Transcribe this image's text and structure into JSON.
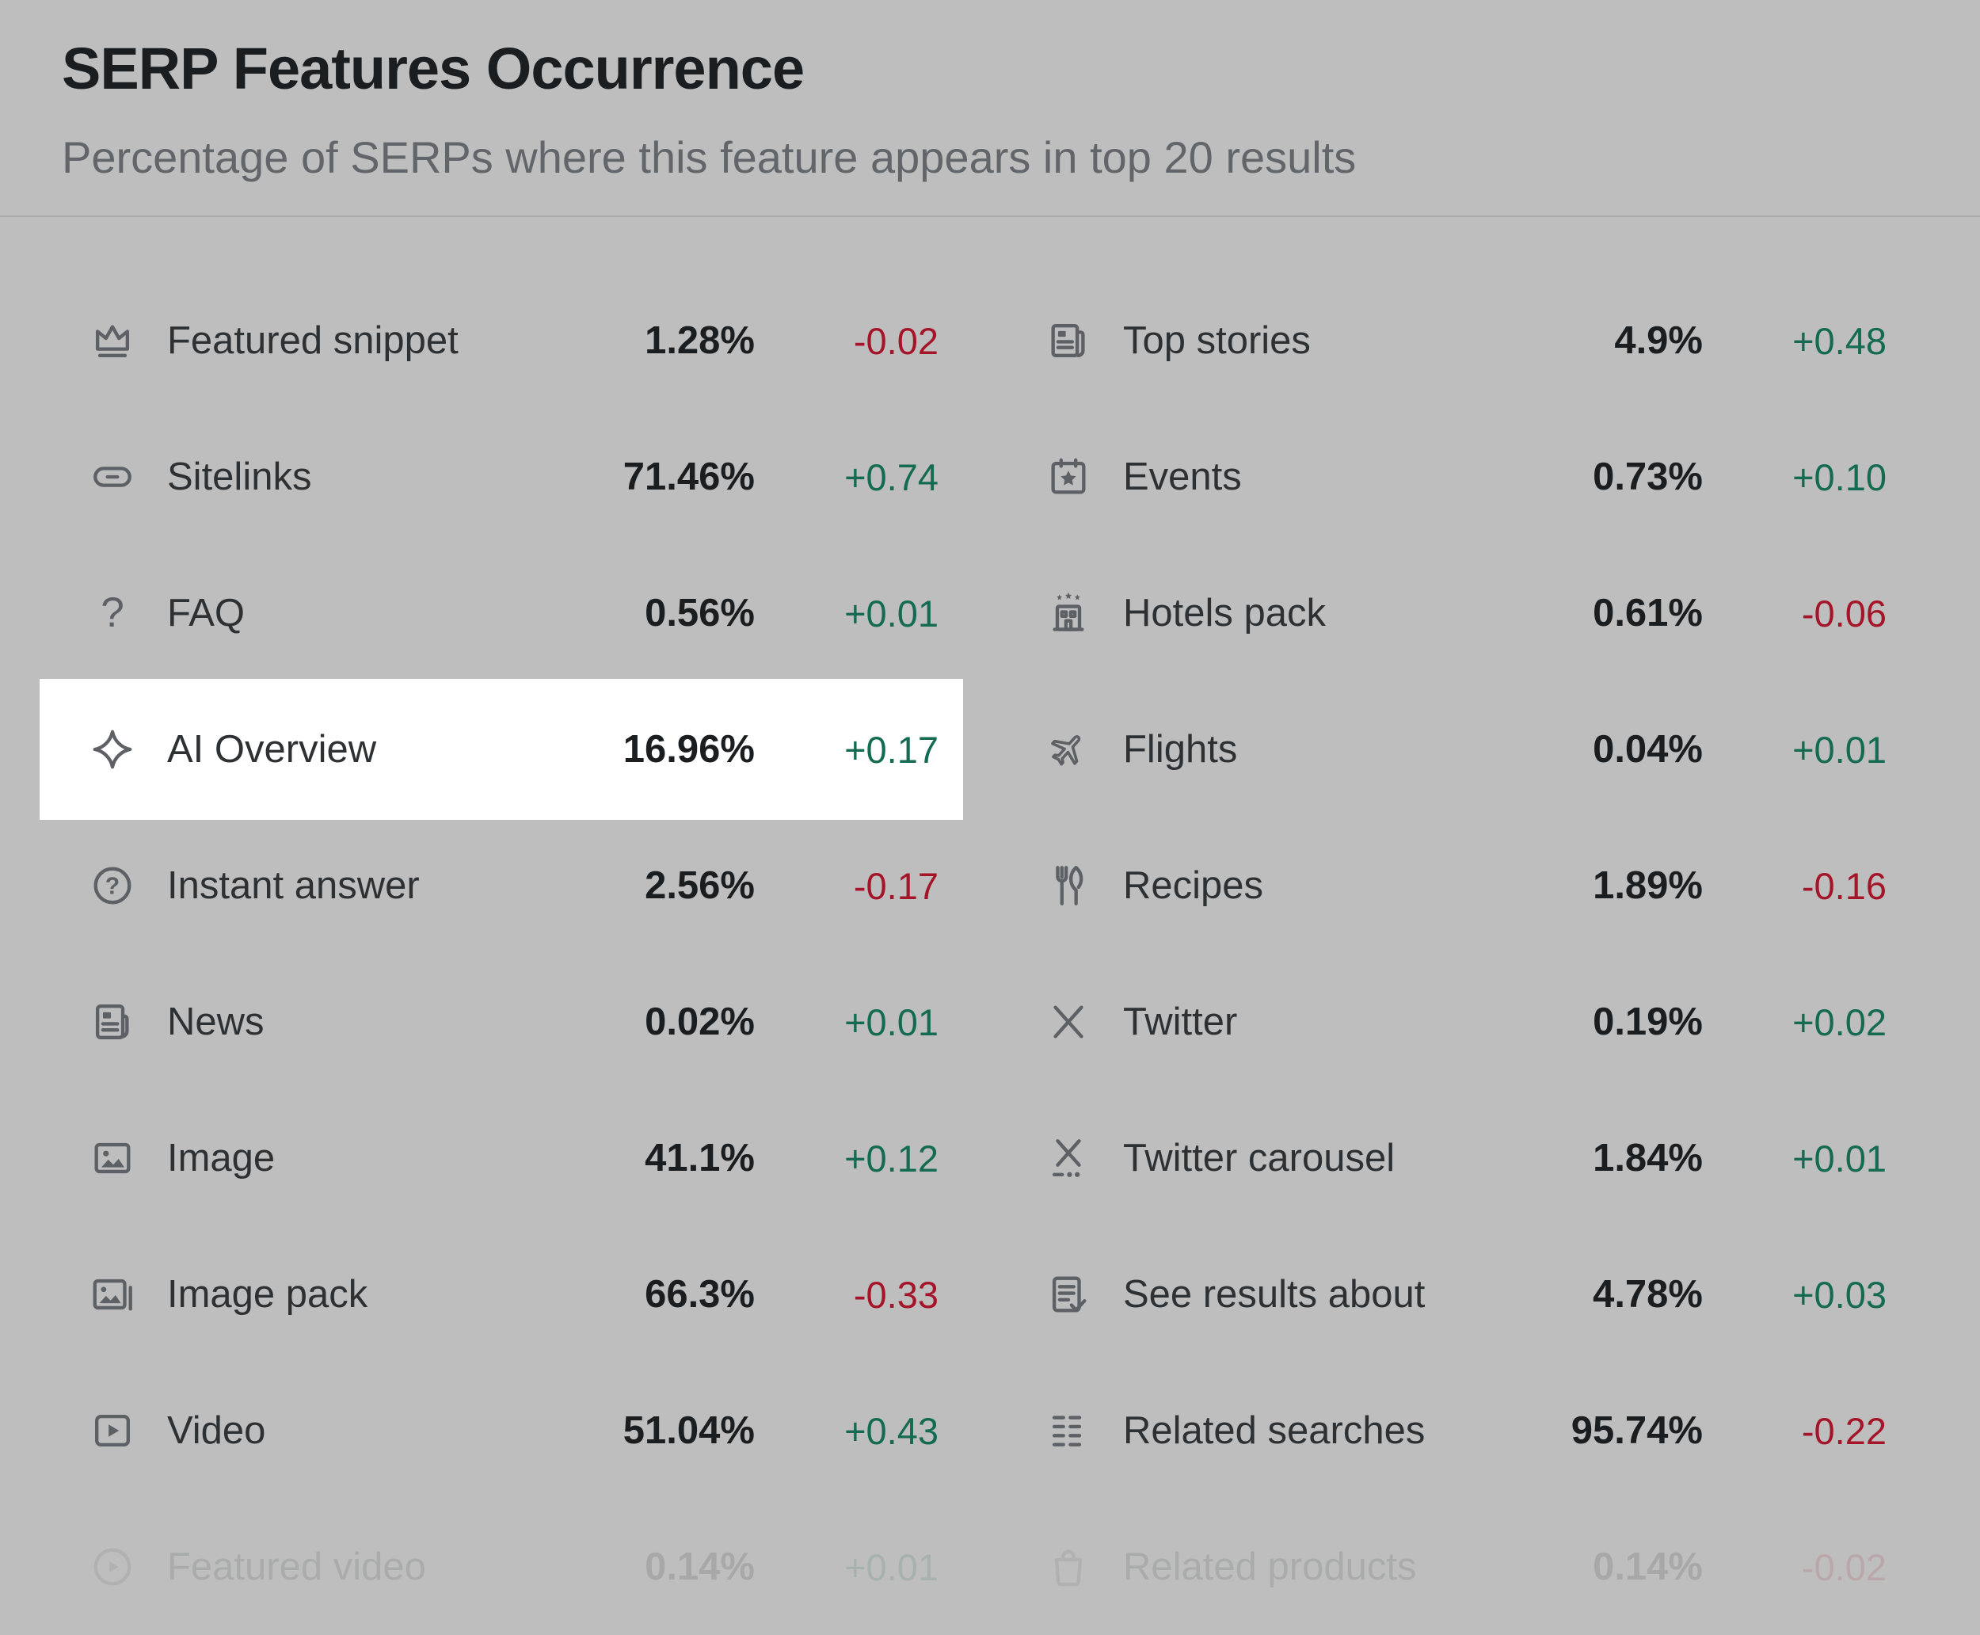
{
  "header": {
    "title": "SERP Features Occurrence",
    "subtitle": "Percentage of SERPs where this feature appears in top 20 results"
  },
  "colors": {
    "positive": "#156a52",
    "negative": "#a51529",
    "dim_background": "#bebebe",
    "highlight_background": "#ffffff"
  },
  "features": {
    "left": [
      {
        "label": "Featured snippet",
        "icon": "featured-snippet",
        "value": "1.28%",
        "change": "-0.02",
        "direction": "down"
      },
      {
        "label": "Sitelinks",
        "icon": "sitelinks",
        "value": "71.46%",
        "change": "+0.74",
        "direction": "up"
      },
      {
        "label": "FAQ",
        "icon": "faq",
        "value": "0.56%",
        "change": "+0.01",
        "direction": "up"
      },
      {
        "label": "AI Overview",
        "icon": "ai-overview",
        "value": "16.96%",
        "change": "+0.17",
        "direction": "up",
        "highlighted": true
      },
      {
        "label": "Instant answer",
        "icon": "instant-answer",
        "value": "2.56%",
        "change": "-0.17",
        "direction": "down"
      },
      {
        "label": "News",
        "icon": "news",
        "value": "0.02%",
        "change": "+0.01",
        "direction": "up"
      },
      {
        "label": "Image",
        "icon": "image",
        "value": "41.1%",
        "change": "+0.12",
        "direction": "up"
      },
      {
        "label": "Image pack",
        "icon": "image-pack",
        "value": "66.3%",
        "change": "-0.33",
        "direction": "down"
      },
      {
        "label": "Video",
        "icon": "video",
        "value": "51.04%",
        "change": "+0.43",
        "direction": "up"
      },
      {
        "label": "Featured video",
        "icon": "featured-video",
        "value": "0.14%",
        "change": "+0.01",
        "direction": "up",
        "faded": true
      }
    ],
    "right": [
      {
        "label": "Top stories",
        "icon": "top-stories",
        "value": "4.9%",
        "change": "+0.48",
        "direction": "up"
      },
      {
        "label": "Events",
        "icon": "events",
        "value": "0.73%",
        "change": "+0.10",
        "direction": "up"
      },
      {
        "label": "Hotels pack",
        "icon": "hotels-pack",
        "value": "0.61%",
        "change": "-0.06",
        "direction": "down"
      },
      {
        "label": "Flights",
        "icon": "flights",
        "value": "0.04%",
        "change": "+0.01",
        "direction": "up"
      },
      {
        "label": "Recipes",
        "icon": "recipes",
        "value": "1.89%",
        "change": "-0.16",
        "direction": "down"
      },
      {
        "label": "Twitter",
        "icon": "twitter-x",
        "value": "0.19%",
        "change": "+0.02",
        "direction": "up"
      },
      {
        "label": "Twitter carousel",
        "icon": "twitter-carousel",
        "value": "1.84%",
        "change": "+0.01",
        "direction": "up"
      },
      {
        "label": "See results about",
        "icon": "see-results-about",
        "value": "4.78%",
        "change": "+0.03",
        "direction": "up"
      },
      {
        "label": "Related searches",
        "icon": "related-searches",
        "value": "95.74%",
        "change": "-0.22",
        "direction": "down"
      },
      {
        "label": "Related products",
        "icon": "related-products",
        "value": "0.14%",
        "change": "-0.02",
        "direction": "down",
        "faded": true
      }
    ]
  }
}
